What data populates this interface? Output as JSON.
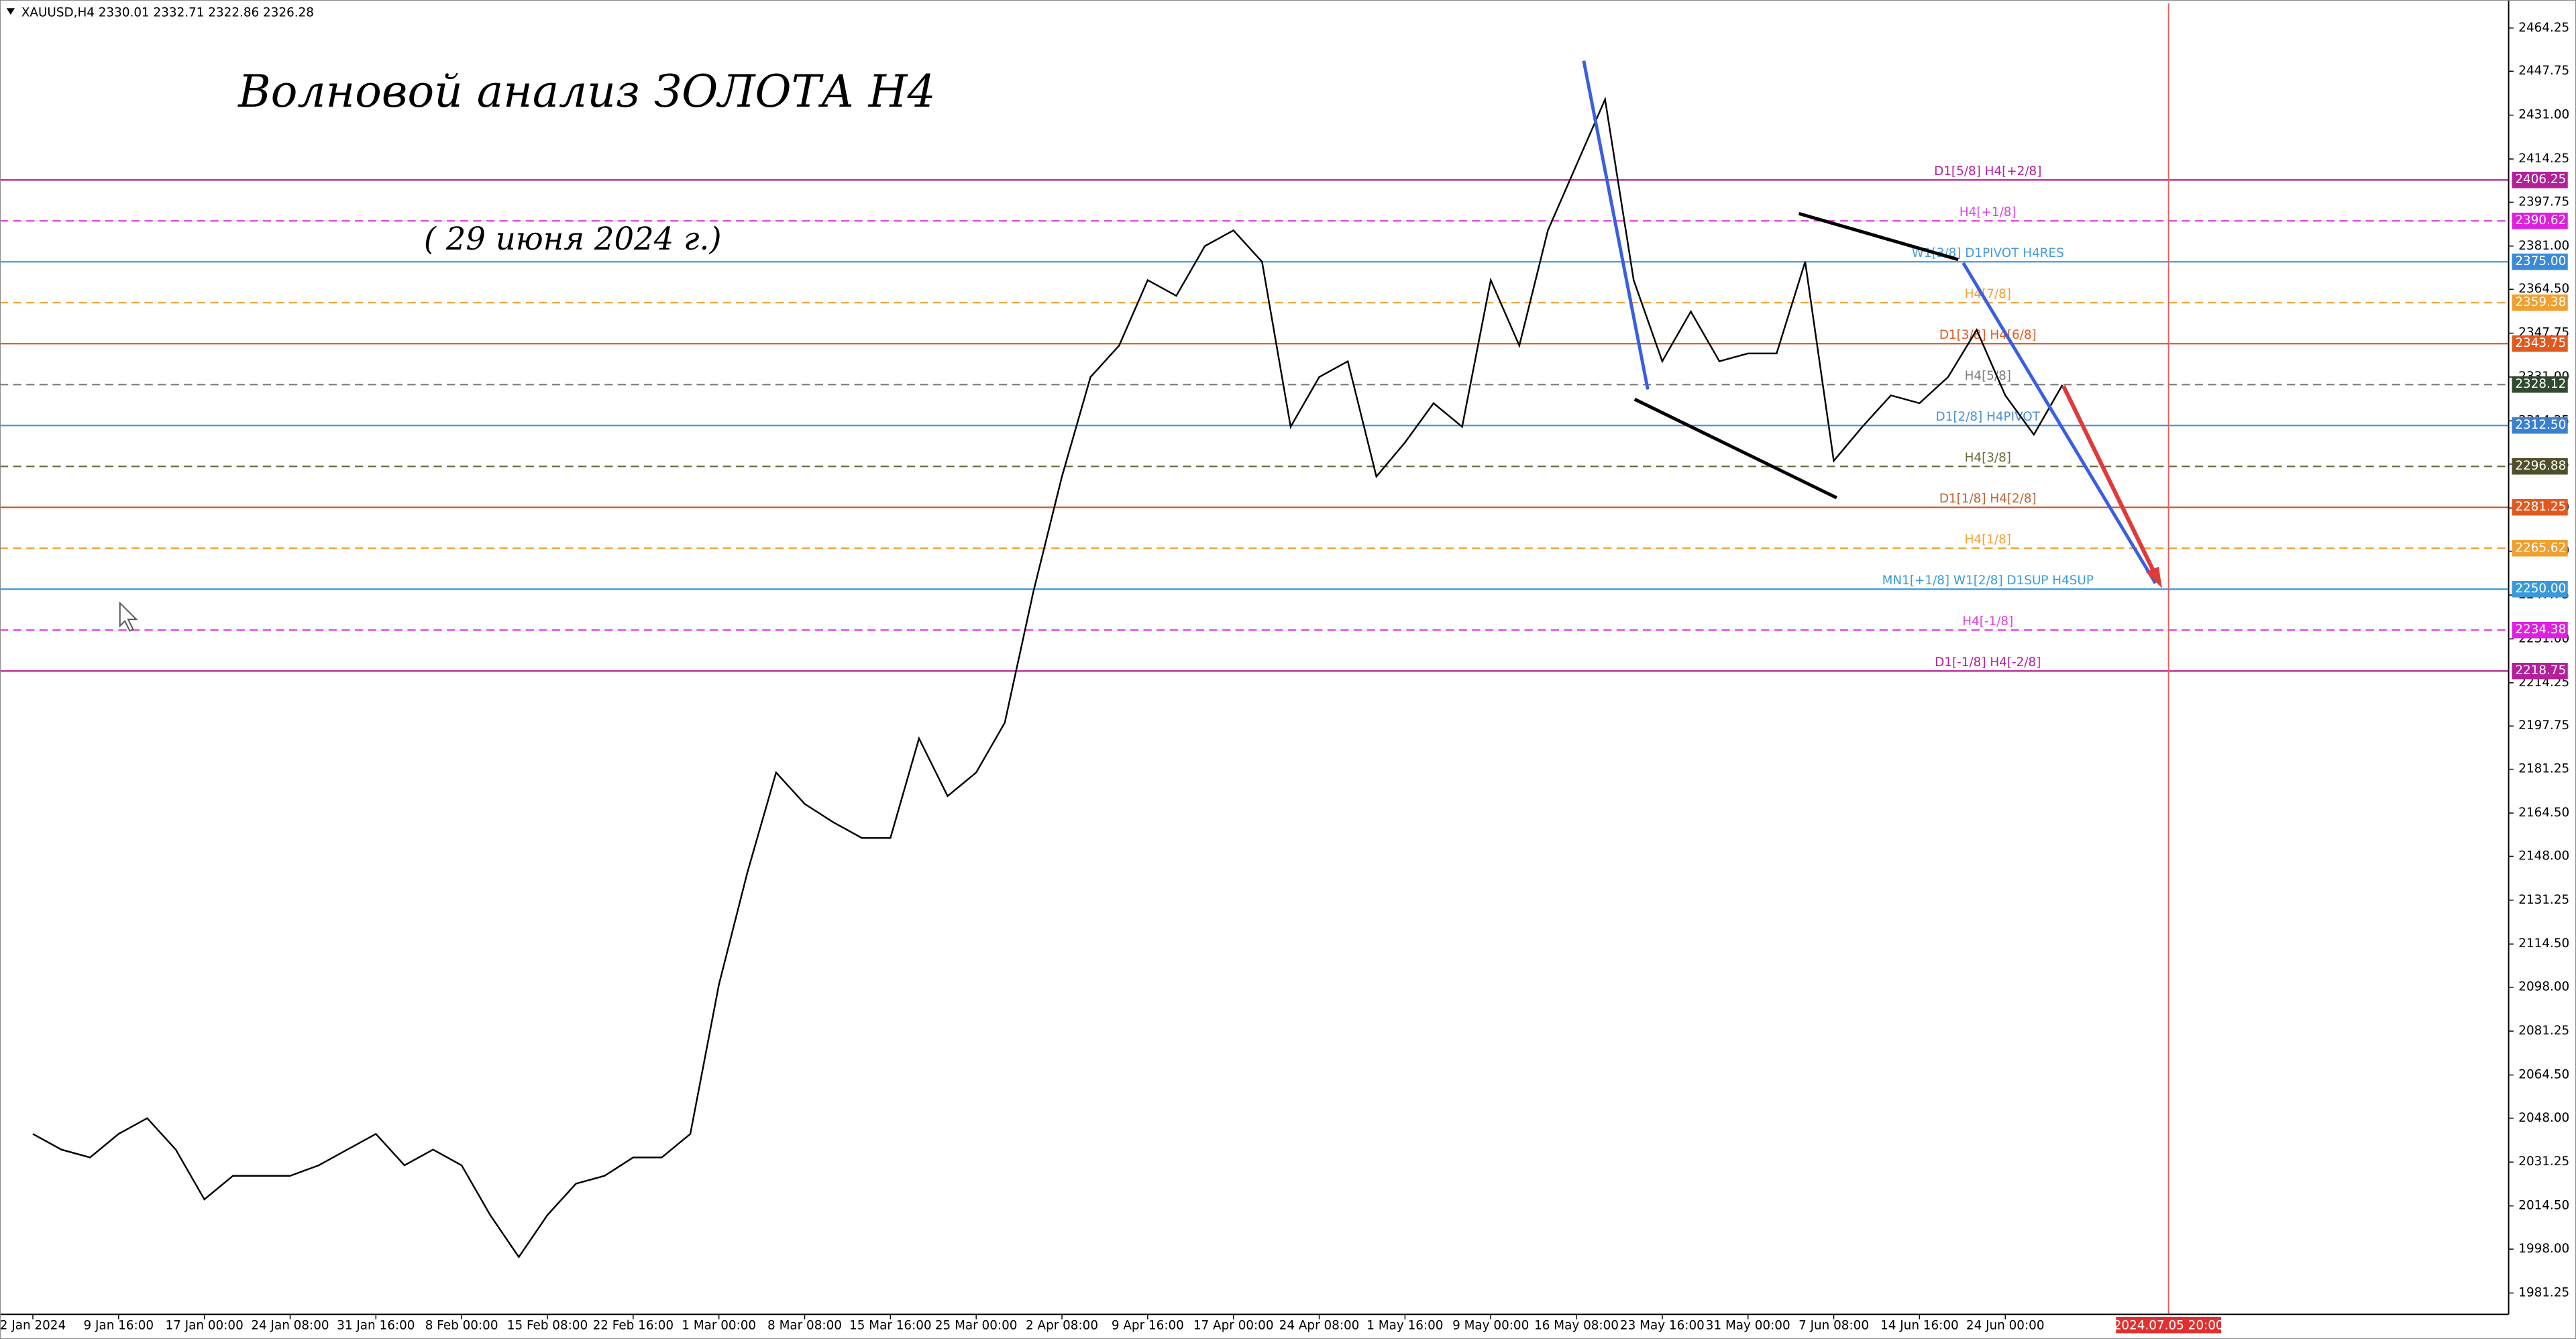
{
  "chart_data": {
    "type": "line",
    "symbol_info": "XAUUSD,H4  2330.01 2332.71 2322.86 2326.28",
    "title": "Волновой анализ ЗОЛОТА Н4",
    "subtitle": "( 29 июня 2024 г.)",
    "categories": [
      "2 Jan 2024",
      null,
      null,
      "9 Jan 16:00",
      null,
      null,
      "17 Jan 00:00",
      null,
      null,
      "24 Jan 08:00",
      null,
      null,
      "31 Jan 16:00",
      null,
      null,
      "8 Feb 00:00",
      null,
      null,
      "15 Feb 08:00",
      null,
      null,
      "22 Feb 16:00",
      null,
      null,
      "1 Mar 00:00",
      null,
      null,
      "8 Mar 08:00",
      null,
      null,
      "15 Mar 16:00",
      null,
      null,
      "25 Mar 00:00",
      null,
      null,
      "2 Apr 08:00",
      null,
      null,
      "9 Apr 16:00",
      null,
      null,
      "17 Apr 00:00",
      null,
      null,
      "24 Apr 08:00",
      null,
      null,
      "1 May 16:00",
      null,
      null,
      "9 May 00:00",
      null,
      null,
      "16 May 08:00",
      null,
      null,
      "23 May 16:00",
      null,
      null,
      "31 May 00:00",
      null,
      null,
      "7 Jun 08:00",
      null,
      null,
      "14 Jun 16:00",
      null,
      null,
      "24 Jun 00:00",
      null,
      null
    ],
    "series": [
      {
        "name": "XAUUSD",
        "color": "#000000",
        "values": [
          2042,
          2036,
          2033,
          2042,
          2048,
          2036,
          2017,
          2026,
          2026,
          2026,
          2030,
          2036,
          2042,
          2030,
          2036,
          2030,
          2011,
          1995,
          2011,
          2023,
          2026,
          2033,
          2033,
          2042,
          2099,
          2142,
          2180,
          2168,
          2161,
          2155,
          2155,
          2193,
          2171,
          2180,
          2199,
          2249,
          2293,
          2331,
          2343,
          2368,
          2362,
          2381,
          2387,
          2375,
          2312,
          2331,
          2337,
          2293,
          2306,
          2321,
          2312,
          2368,
          2343,
          2387,
          2412,
          2437,
          2368,
          2337,
          2356,
          2337,
          2340,
          2340,
          2375,
          2299,
          2312,
          2324,
          2321,
          2331,
          2349,
          2324,
          2309,
          2328
        ]
      }
    ],
    "ylim": [
      1973.1,
      2473.7
    ],
    "yticks": [
      {
        "value": 2464.25,
        "label": "2464.25"
      },
      {
        "value": 2447.75,
        "label": "2447.75"
      },
      {
        "value": 2431.0,
        "label": "2431.00"
      },
      {
        "value": 2414.25,
        "label": "2414.25"
      },
      {
        "value": 2397.75,
        "label": "2397.75"
      },
      {
        "value": 2381.0,
        "label": "2381.00"
      },
      {
        "value": 2364.5,
        "label": "2364.50"
      },
      {
        "value": 2347.75,
        "label": "2347.75"
      },
      {
        "value": 2331.0,
        "label": "2331.00"
      },
      {
        "value": 2314.25,
        "label": "2314.25"
      },
      {
        "value": 2297.75,
        "label": "2297.75"
      },
      {
        "value": 2281.0,
        "label": "2281.00"
      },
      {
        "value": 2264.5,
        "label": "2264.50"
      },
      {
        "value": 2247.75,
        "label": "2247.75"
      },
      {
        "value": 2231.0,
        "label": "2231.00"
      },
      {
        "value": 2214.25,
        "label": "2214.25"
      },
      {
        "value": 2197.75,
        "label": "2197.75"
      },
      {
        "value": 2181.25,
        "label": "2181.25"
      },
      {
        "value": 2164.5,
        "label": "2164.50"
      },
      {
        "value": 2148.0,
        "label": "2148.00"
      },
      {
        "value": 2131.25,
        "label": "2131.25"
      },
      {
        "value": 2114.5,
        "label": "2114.50"
      },
      {
        "value": 2098.0,
        "label": "2098.00"
      },
      {
        "value": 2081.25,
        "label": "2081.25"
      },
      {
        "value": 2064.5,
        "label": "2064.50"
      },
      {
        "value": 2048.0,
        "label": "2048.00"
      },
      {
        "value": 2031.25,
        "label": "2031.25"
      },
      {
        "value": 2014.5,
        "label": "2014.50"
      },
      {
        "value": 1998.0,
        "label": "1998.00"
      },
      {
        "value": 1981.25,
        "label": "1981.25"
      }
    ],
    "levels": {
      "names": [
        "D1[5/8] H4[+2/8]",
        "H4[+1/8]",
        "W1[3/8] D1PIVOT H4RES",
        "H4[7/8]",
        "D1[3/8] H4[6/8]",
        "H4[5/8]",
        "D1[2/8] H4PIVOT",
        "H4[3/8]",
        "D1[1/8] H4[2/8]",
        "H4[1/8]",
        "MN1[+1/8] W1[2/8] D1SUP H4SUP",
        "H4[-1/8]",
        "D1[-1/8] H4[-2/8]"
      ],
      "values": [
        2406.25,
        2390.62,
        2375.0,
        2359.38,
        2343.75,
        2328.12,
        2312.5,
        2296.88,
        2281.25,
        2265.62,
        2250.0,
        2234.38,
        2218.75
      ],
      "value_labels": [
        "2406.25",
        "2390.62",
        "2375.00",
        "2359.38",
        "2343.75",
        "2328.12",
        "2312.50",
        "2296.88",
        "2281.25",
        "2265.62",
        "2250.00",
        "2234.38",
        "2218.75"
      ],
      "colors": [
        "#b4209a",
        "#e040e0",
        "#4a9ad8",
        "#f0a030",
        "#e05a20",
        "#808080",
        "#4a90d9",
        "#6b6b3a",
        "#c06030",
        "#f0a030",
        "#3a9ad9",
        "#e040e0",
        "#b4209a"
      ],
      "box_colors": [
        "#b4209a",
        "#e020e0",
        "#3a8ad8",
        "#f0a030",
        "#e05a20",
        "#2f4a2f",
        "#3a80d0",
        "#4f4f2a",
        "#e05a20",
        "#f0a030",
        "#3a9ad9",
        "#e020e0",
        "#b4209a"
      ],
      "dashed": [
        false,
        true,
        false,
        true,
        false,
        true,
        false,
        true,
        false,
        true,
        false,
        true,
        false
      ]
    },
    "marker_date": "2024.07.05 20:00"
  }
}
